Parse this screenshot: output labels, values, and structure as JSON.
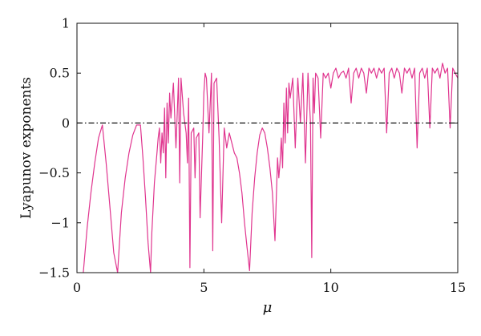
{
  "chart_data": {
    "type": "line",
    "title": "",
    "xlabel": "μ",
    "ylabel": "Lyapunov exponents",
    "xlim": [
      0,
      15
    ],
    "ylim": [
      -1.5,
      1
    ],
    "x_ticks": [
      "0",
      "5",
      "10",
      "15"
    ],
    "y_ticks": [
      "1",
      "0.5",
      "0",
      "−0.5",
      "−1",
      "−1.5"
    ],
    "grid": false,
    "series": [
      {
        "color": "#e0358f",
        "x": [
          0.25,
          0.4,
          0.55,
          0.7,
          0.85,
          1.0,
          1.15,
          1.3,
          1.45,
          1.6,
          1.75,
          1.9,
          2.05,
          2.2,
          2.35,
          2.5,
          2.6,
          2.7,
          2.8,
          2.9,
          2.95,
          3.05,
          3.15,
          3.2,
          3.25,
          3.3,
          3.35,
          3.4,
          3.45,
          3.5,
          3.55,
          3.6,
          3.65,
          3.7,
          3.8,
          3.9,
          4.0,
          4.05,
          4.1,
          4.2,
          4.3,
          4.35,
          4.4,
          4.45,
          4.5,
          4.6,
          4.65,
          4.7,
          4.8,
          4.85,
          4.95,
          5.0,
          5.05,
          5.1,
          5.2,
          5.3,
          5.35,
          5.4,
          5.5,
          5.6,
          5.7,
          5.8,
          5.9,
          6.0,
          6.1,
          6.2,
          6.3,
          6.4,
          6.5,
          6.6,
          6.7,
          6.8,
          6.9,
          7.0,
          7.1,
          7.2,
          7.3,
          7.4,
          7.5,
          7.6,
          7.7,
          7.8,
          7.9,
          7.95,
          8.0,
          8.05,
          8.1,
          8.15,
          8.2,
          8.25,
          8.3,
          8.35,
          8.4,
          8.5,
          8.6,
          8.7,
          8.8,
          8.9,
          9.0,
          9.1,
          9.2,
          9.25,
          9.3,
          9.35,
          9.4,
          9.5,
          9.6,
          9.7,
          9.8,
          9.9,
          10.0,
          10.1,
          10.2,
          10.3,
          10.4,
          10.5,
          10.6,
          10.7,
          10.8,
          10.9,
          11.0,
          11.1,
          11.2,
          11.3,
          11.4,
          11.5,
          11.6,
          11.7,
          11.8,
          11.9,
          12.0,
          12.1,
          12.2,
          12.3,
          12.4,
          12.5,
          12.6,
          12.7,
          12.8,
          12.9,
          13.0,
          13.1,
          13.2,
          13.3,
          13.4,
          13.5,
          13.6,
          13.7,
          13.8,
          13.9,
          14.0,
          14.1,
          14.2,
          14.3,
          14.4,
          14.5,
          14.6,
          14.7,
          14.8,
          14.9,
          15.0
        ],
        "y": [
          -1.5,
          -1.05,
          -0.7,
          -0.4,
          -0.15,
          -0.02,
          -0.4,
          -0.85,
          -1.3,
          -1.5,
          -0.9,
          -0.55,
          -0.3,
          -0.12,
          -0.02,
          -0.02,
          -0.35,
          -0.75,
          -1.2,
          -1.5,
          -1.1,
          -0.6,
          -0.3,
          -0.15,
          -0.05,
          -0.4,
          -0.1,
          -0.3,
          0.15,
          -0.55,
          0.2,
          -0.2,
          0.3,
          0.05,
          0.4,
          -0.25,
          0.45,
          -0.6,
          0.45,
          0.1,
          -0.1,
          -0.4,
          0.25,
          -1.45,
          -0.1,
          -0.05,
          -0.55,
          -0.15,
          -0.1,
          -0.95,
          -0.15,
          0.3,
          0.5,
          0.45,
          -0.1,
          0.5,
          -1.28,
          0.4,
          0.45,
          -0.15,
          -1.0,
          -0.05,
          -0.25,
          -0.1,
          -0.2,
          -0.3,
          -0.35,
          -0.5,
          -0.7,
          -1.0,
          -1.25,
          -1.48,
          -0.9,
          -0.55,
          -0.3,
          -0.12,
          -0.05,
          -0.1,
          -0.25,
          -0.45,
          -0.7,
          -1.18,
          -0.35,
          -0.55,
          -0.4,
          -0.15,
          -0.45,
          0.2,
          -0.2,
          0.35,
          -0.1,
          0.4,
          0.25,
          0.45,
          -0.25,
          0.45,
          0.0,
          0.5,
          -0.4,
          0.5,
          0.0,
          -1.35,
          0.45,
          0.1,
          0.5,
          0.45,
          -0.15,
          0.5,
          0.45,
          0.5,
          0.35,
          0.5,
          0.55,
          0.45,
          0.5,
          0.52,
          0.45,
          0.55,
          0.2,
          0.5,
          0.55,
          0.45,
          0.55,
          0.5,
          0.3,
          0.55,
          0.5,
          0.55,
          0.45,
          0.55,
          0.5,
          0.55,
          -0.1,
          0.5,
          0.55,
          0.45,
          0.55,
          0.5,
          0.3,
          0.55,
          0.5,
          0.55,
          0.45,
          0.55,
          -0.25,
          0.5,
          0.55,
          0.45,
          0.55,
          -0.05,
          0.55,
          0.5,
          0.55,
          0.45,
          0.6,
          0.5,
          0.55,
          -0.05,
          0.55,
          0.5,
          0.45
        ]
      },
      {
        "name": "",
        "style": "dash-dot",
        "color": "#111111",
        "x": [
          0,
          15
        ],
        "y": [
          0,
          0
        ]
      }
    ]
  }
}
